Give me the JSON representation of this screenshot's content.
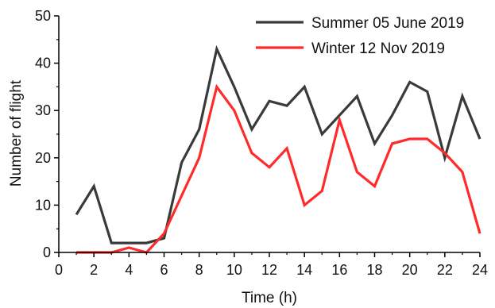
{
  "chart_data": {
    "type": "line",
    "title": "",
    "xlabel": "Time (h)",
    "ylabel": "Number of flight",
    "xlim": [
      0,
      24
    ],
    "ylim": [
      0,
      50
    ],
    "xticks": [
      "0",
      "2",
      "4",
      "6",
      "8",
      "10",
      "12",
      "14",
      "16",
      "18",
      "20",
      "22",
      "24"
    ],
    "yticks": [
      "0",
      "10",
      "20",
      "30",
      "40",
      "50"
    ],
    "grid": false,
    "legend": "top-right",
    "x": [
      1,
      2,
      3,
      4,
      5,
      6,
      7,
      8,
      9,
      10,
      11,
      12,
      13,
      14,
      15,
      16,
      17,
      18,
      19,
      20,
      21,
      22,
      23,
      24
    ],
    "series": [
      {
        "name": "Summer 05 June 2019",
        "color": "#3a3a3a",
        "values": [
          8,
          14,
          2,
          2,
          2,
          3,
          19,
          26,
          43,
          35,
          26,
          32,
          31,
          35,
          25,
          29,
          33,
          23,
          29,
          36,
          34,
          20,
          33,
          24
        ]
      },
      {
        "name": "Winter 12 Nov 2019",
        "color": "#ff2b2b",
        "values": [
          0,
          0,
          0,
          1,
          0,
          4,
          12,
          20,
          35,
          30,
          21,
          18,
          22,
          10,
          13,
          28,
          17,
          14,
          23,
          24,
          24,
          21,
          17,
          4
        ]
      }
    ]
  }
}
